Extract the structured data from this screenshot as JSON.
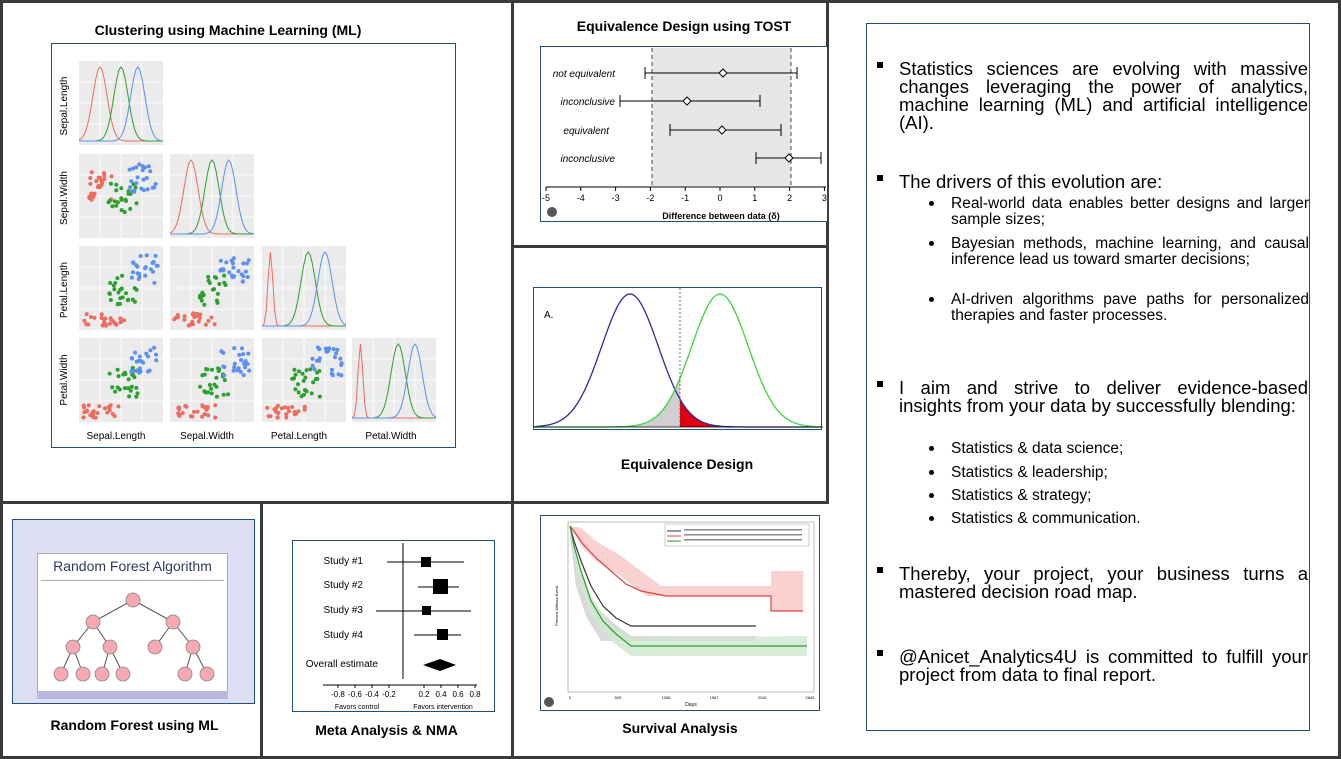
{
  "panels": {
    "clustering": {
      "title": "Clustering using Machine Learning (ML)",
      "axis_labels": [
        "Sepal.Length",
        "Sepal.Width",
        "Petal.Length",
        "Petal.Width"
      ]
    },
    "tost": {
      "title": "Equivalence Design using TOST",
      "xlabel": "Difference between data (δ)",
      "rows": [
        "not equivalent",
        "inconclusive",
        "equivalent",
        "inconclusive"
      ],
      "ticks": [
        "-5",
        "-4",
        "-3",
        "-2",
        "-1",
        "0",
        "1",
        "2",
        "3"
      ]
    },
    "equivalence": {
      "title": "Equivalence Design",
      "panel_label": "A."
    },
    "random_forest": {
      "header": "Random Forest Algorithm",
      "caption": "Random Forest using ML"
    },
    "meta": {
      "title": "Meta Analysis & NMA",
      "studies": [
        "Study #1",
        "Study #2",
        "Study #3",
        "Study #4"
      ],
      "overall": "Overall estimate",
      "ticks": [
        "-0.8",
        "-0.6",
        "-0.4",
        "-0.2",
        "0.2",
        "0.4",
        "0.6",
        "0.8"
      ],
      "favors_control": "Favors control",
      "favors_intervention": "Favors intervention"
    },
    "survival": {
      "title": "Survival Analysis",
      "ylabel": "Percent Without Event",
      "xlabel": "Days",
      "ticks": [
        "0",
        "529",
        "1058",
        "1587",
        "2116",
        "2645"
      ]
    }
  },
  "text": {
    "b1": "Statistics sciences are evolving with massive changes leveraging the power of analytics, machine learning (ML) and artificial intelligence (AI).",
    "b2": "The drivers of this evolution are:",
    "b2_items": [
      "Real-world data enables better designs and larger sample sizes;",
      "Bayesian methods, machine learning, and causal inference lead us toward smarter decisions;",
      "AI-driven algorithms pave paths for personalized therapies and faster processes."
    ],
    "b3": "I aim and strive to deliver evidence-based insights from your data by successfully blending:",
    "b3_items": [
      "Statistics & data science;",
      "Statistics & leadership;",
      "Statistics & strategy;",
      "Statistics & communication."
    ],
    "b4": "Thereby, your project, your business turns a mastered decision road map.",
    "b5": "@Anicet_Analytics4U is committed to fulfill your project from data to final report."
  }
}
